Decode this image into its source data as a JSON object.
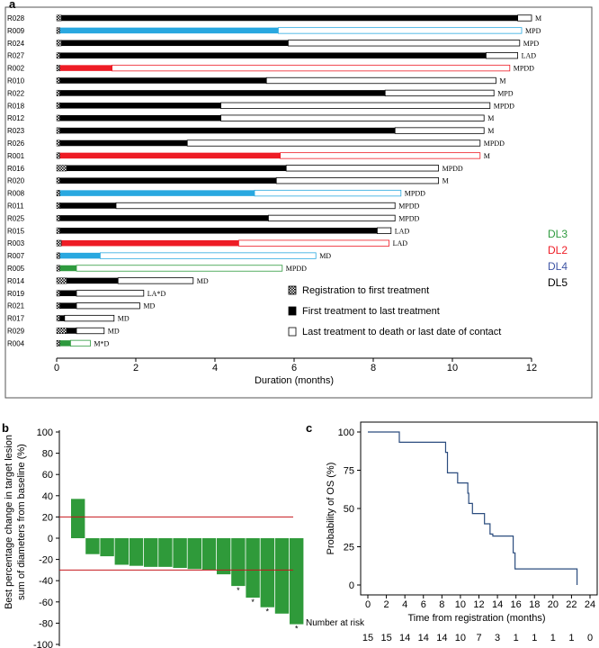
{
  "panel_labels": {
    "a": "a",
    "b": "b",
    "c": "c"
  },
  "colors": {
    "DL3": "#2e9a3e",
    "DL2": "#ee1c25",
    "DL4": "#29a8e0",
    "DL5": "#000000",
    "DL4_legend": "#3f55a5",
    "waterfall": "#2f9a3a",
    "threshold": "#c4161c",
    "km": "#2b4c7e"
  },
  "chart_data": [
    {
      "id": "swimmer",
      "type": "bar",
      "xlabel": "Duration (months)",
      "xlim": [
        0,
        12
      ],
      "xticks": [
        0,
        2,
        4,
        6,
        8,
        10,
        12
      ],
      "legend_levels": [
        {
          "label": "DL3",
          "color_key": "DL3"
        },
        {
          "label": "DL2",
          "color_key": "DL2"
        },
        {
          "label": "DL4",
          "color_key": "DL4_legend"
        },
        {
          "label": "DL5",
          "color_key": "DL5"
        }
      ],
      "legend_segments": [
        {
          "pattern": "checker",
          "label": "Registration to first treatment"
        },
        {
          "pattern": "solid",
          "label": "First treatment to last treatment"
        },
        {
          "pattern": "open",
          "label": "Last treatment to death or last date of contact"
        }
      ],
      "patients": [
        {
          "id": "R028",
          "level": "DL5",
          "reg": 0.12,
          "treat_end": 11.65,
          "end": 12.0,
          "annot": "M"
        },
        {
          "id": "R009",
          "level": "DL4",
          "reg": 0.08,
          "treat_end": 5.6,
          "end": 11.75,
          "annot": "MPD"
        },
        {
          "id": "R024",
          "level": "DL5",
          "reg": 0.12,
          "treat_end": 5.85,
          "end": 11.7,
          "annot": "MPD"
        },
        {
          "id": "R027",
          "level": "DL5",
          "reg": 0.08,
          "treat_end": 10.85,
          "end": 11.65,
          "annot": "LAD"
        },
        {
          "id": "R002",
          "level": "DL2",
          "reg": 0.08,
          "treat_end": 1.4,
          "end": 11.45,
          "annot": "MPDD"
        },
        {
          "id": "R010",
          "level": "DL5",
          "reg": 0.08,
          "treat_end": 5.3,
          "end": 11.1,
          "annot": "M"
        },
        {
          "id": "R022",
          "level": "DL5",
          "reg": 0.08,
          "treat_end": 8.3,
          "end": 11.05,
          "annot": "MPD"
        },
        {
          "id": "R018",
          "level": "DL5",
          "reg": 0.08,
          "treat_end": 4.15,
          "end": 10.95,
          "annot": "MPDD"
        },
        {
          "id": "R012",
          "level": "DL5",
          "reg": 0.08,
          "treat_end": 4.15,
          "end": 10.8,
          "annot": "M"
        },
        {
          "id": "R023",
          "level": "DL5",
          "reg": 0.08,
          "treat_end": 8.55,
          "end": 10.8,
          "annot": "M"
        },
        {
          "id": "R026",
          "level": "DL5",
          "reg": 0.08,
          "treat_end": 3.3,
          "end": 10.7,
          "annot": "MPDD"
        },
        {
          "id": "R001",
          "level": "DL2",
          "reg": 0.08,
          "treat_end": 5.65,
          "end": 10.7,
          "annot": "M"
        },
        {
          "id": "R016",
          "level": "DL5",
          "reg": 0.25,
          "treat_end": 5.8,
          "end": 9.65,
          "annot": "MPDD"
        },
        {
          "id": "R020",
          "level": "DL5",
          "reg": 0.08,
          "treat_end": 5.55,
          "end": 9.65,
          "annot": "M"
        },
        {
          "id": "R008",
          "level": "DL4",
          "reg": 0.08,
          "treat_end": 5.0,
          "end": 8.7,
          "annot": "MPDD"
        },
        {
          "id": "R011",
          "level": "DL5",
          "reg": 0.08,
          "treat_end": 1.5,
          "end": 8.55,
          "annot": "MPDD"
        },
        {
          "id": "R025",
          "level": "DL5",
          "reg": 0.08,
          "treat_end": 5.35,
          "end": 8.55,
          "annot": "MPDD"
        },
        {
          "id": "R015",
          "level": "DL5",
          "reg": 0.08,
          "treat_end": 8.1,
          "end": 8.45,
          "annot": "LAD"
        },
        {
          "id": "R003",
          "level": "DL2",
          "reg": 0.12,
          "treat_end": 4.6,
          "end": 8.4,
          "annot": "LAD"
        },
        {
          "id": "R007",
          "level": "DL4",
          "reg": 0.08,
          "treat_end": 1.1,
          "end": 6.55,
          "annot": "MD"
        },
        {
          "id": "R005",
          "level": "DL3",
          "reg": 0.08,
          "treat_end": 0.5,
          "end": 5.7,
          "annot": "MPDD"
        },
        {
          "id": "R014",
          "level": "DL5",
          "reg": 0.25,
          "treat_end": 1.55,
          "end": 3.45,
          "annot": "MD"
        },
        {
          "id": "R019",
          "level": "DL5",
          "reg": 0.08,
          "treat_end": 0.5,
          "end": 2.2,
          "annot": "LA*D"
        },
        {
          "id": "R021",
          "level": "DL5",
          "reg": 0.08,
          "treat_end": 0.5,
          "end": 2.1,
          "annot": "MD"
        },
        {
          "id": "R017",
          "level": "DL5",
          "reg": 0.08,
          "treat_end": 0.2,
          "end": 1.45,
          "annot": "MD"
        },
        {
          "id": "R029",
          "level": "DL5",
          "reg": 0.25,
          "treat_end": 0.5,
          "end": 1.2,
          "annot": "MD"
        },
        {
          "id": "R004",
          "level": "DL3",
          "reg": 0.08,
          "treat_end": 0.35,
          "end": 0.85,
          "annot": "M*D"
        }
      ]
    },
    {
      "id": "waterfall",
      "type": "bar",
      "ylabel_lines": [
        "Best percentage change in target lesion",
        "sum of diameters from baseline (%)"
      ],
      "ylim": [
        -100,
        100
      ],
      "yticks": [
        100,
        80,
        60,
        40,
        20,
        0,
        -20,
        -40,
        -60,
        -80,
        -100
      ],
      "reference_lines": [
        20,
        -30
      ],
      "values": [
        37,
        -15,
        -17,
        -25,
        -26,
        -27,
        -27,
        -28,
        -29,
        -30,
        -34,
        -45,
        -56,
        -65,
        -71,
        -81
      ],
      "starred": [
        false,
        false,
        false,
        false,
        false,
        false,
        false,
        false,
        false,
        false,
        false,
        true,
        true,
        true,
        false,
        true
      ],
      "star_symbol": "*"
    },
    {
      "id": "km",
      "type": "line",
      "ylabel": "Probability of OS (%)",
      "xlabel": "Time from registration (months)",
      "xlim": [
        0,
        24
      ],
      "ylim": [
        0,
        100
      ],
      "xticks": [
        0,
        2,
        4,
        6,
        8,
        10,
        12,
        14,
        16,
        18,
        20,
        22,
        24
      ],
      "yticks": [
        0,
        25,
        50,
        75,
        100
      ],
      "steps": [
        [
          0,
          100
        ],
        [
          3.4,
          93.3
        ],
        [
          8.4,
          86.7
        ],
        [
          8.6,
          73.3
        ],
        [
          9.7,
          66.7
        ],
        [
          10.8,
          60
        ],
        [
          10.9,
          53.3
        ],
        [
          11.3,
          46.7
        ],
        [
          12.6,
          40
        ],
        [
          13.2,
          33.3
        ],
        [
          13.5,
          32
        ],
        [
          15.7,
          21
        ],
        [
          15.9,
          10.5
        ],
        [
          22.6,
          0
        ]
      ],
      "risk_title": "Number at risk",
      "risk_counts": [
        "15",
        "15",
        "14",
        "14",
        "14",
        "10",
        "7",
        "3",
        "1",
        "1",
        "1",
        "1",
        "0"
      ]
    }
  ]
}
